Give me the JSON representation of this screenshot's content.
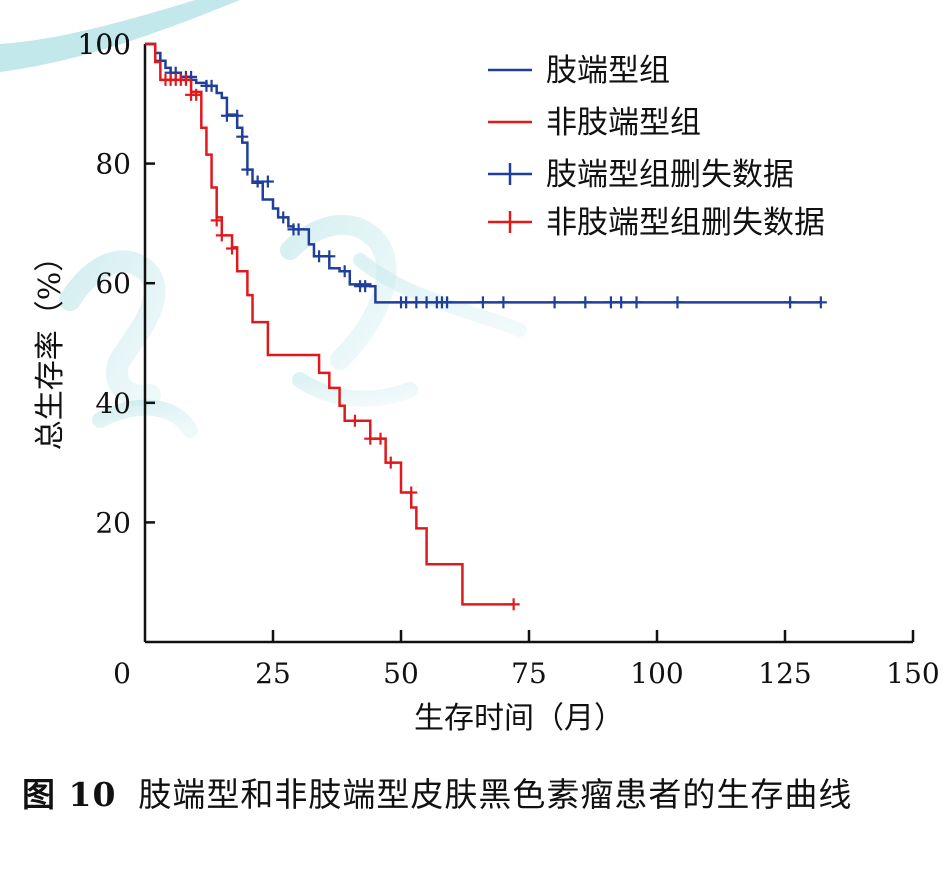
{
  "chart_data": {
    "type": "line",
    "chart_kind": "Kaplan-Meier step survival curve",
    "xlabel": "生存时间（月）",
    "ylabel": "总生存率（%）",
    "xlim": [
      0,
      150
    ],
    "ylim": [
      0,
      100
    ],
    "x_ticks": [
      0,
      25,
      50,
      75,
      100,
      125,
      150
    ],
    "y_ticks": [
      20,
      40,
      60,
      80,
      100
    ],
    "grid": false,
    "legend_position": "top-right",
    "legend": [
      "肢端型组",
      "非肢端型组",
      "肢端型组删失数据",
      "非肢端型组删失数据"
    ],
    "series": [
      {
        "name": "肢端型组",
        "color": "#1f3f9a",
        "steps": [
          [
            0,
            100
          ],
          [
            2,
            98.5
          ],
          [
            3,
            97.2
          ],
          [
            4,
            96
          ],
          [
            5,
            95.2
          ],
          [
            7,
            94.5
          ],
          [
            9,
            94
          ],
          [
            10,
            93.5
          ],
          [
            12,
            93
          ],
          [
            14,
            91.8
          ],
          [
            15,
            91
          ],
          [
            16,
            88.2
          ],
          [
            18,
            86
          ],
          [
            19,
            83.5
          ],
          [
            20,
            79
          ],
          [
            21,
            76.8
          ],
          [
            23,
            74
          ],
          [
            25,
            72.5
          ],
          [
            26,
            71
          ],
          [
            28,
            69.5
          ],
          [
            29,
            69
          ],
          [
            32,
            66.5
          ],
          [
            33,
            64.5
          ],
          [
            36,
            62.5
          ],
          [
            38,
            62
          ],
          [
            40,
            59.8
          ],
          [
            44,
            59.5
          ],
          [
            45,
            56.8
          ],
          [
            132,
            56.8
          ]
        ],
        "censored": [
          [
            3,
            97.2
          ],
          [
            5,
            95.2
          ],
          [
            6,
            95.2
          ],
          [
            8,
            94.5
          ],
          [
            9,
            94.5
          ],
          [
            12,
            93
          ],
          [
            13,
            93
          ],
          [
            16,
            88
          ],
          [
            18,
            88
          ],
          [
            19,
            84.5
          ],
          [
            20,
            79
          ],
          [
            22,
            77
          ],
          [
            24,
            77
          ],
          [
            27,
            71
          ],
          [
            29,
            69
          ],
          [
            30,
            69
          ],
          [
            34,
            64.5
          ],
          [
            36,
            64.5
          ],
          [
            39,
            62
          ],
          [
            42,
            59.5
          ],
          [
            43,
            59.5
          ],
          [
            50,
            56.8
          ],
          [
            51,
            56.8
          ],
          [
            53,
            56.8
          ],
          [
            55,
            56.8
          ],
          [
            57,
            56.8
          ],
          [
            58,
            56.8
          ],
          [
            59,
            56.8
          ],
          [
            66,
            56.8
          ],
          [
            70,
            56.8
          ],
          [
            80,
            56.8
          ],
          [
            86,
            56.8
          ],
          [
            91,
            56.8
          ],
          [
            93,
            56.8
          ],
          [
            96,
            56.8
          ],
          [
            104,
            56.8
          ],
          [
            126,
            56.8
          ],
          [
            132,
            56.8
          ]
        ]
      },
      {
        "name": "非肢端型组",
        "color": "#e0191d",
        "steps": [
          [
            0,
            100
          ],
          [
            2,
            97
          ],
          [
            3,
            94
          ],
          [
            8,
            94
          ],
          [
            9,
            92
          ],
          [
            11,
            86
          ],
          [
            12,
            81.5
          ],
          [
            13,
            76
          ],
          [
            14,
            71
          ],
          [
            15,
            68
          ],
          [
            17,
            66
          ],
          [
            18,
            62
          ],
          [
            20,
            58
          ],
          [
            21,
            53.5
          ],
          [
            24,
            48
          ],
          [
            34,
            45
          ],
          [
            36,
            42.5
          ],
          [
            38,
            39.5
          ],
          [
            39,
            37
          ],
          [
            44,
            34
          ],
          [
            47,
            30
          ],
          [
            50,
            25
          ],
          [
            52,
            22.5
          ],
          [
            53,
            19
          ],
          [
            55,
            13
          ],
          [
            62,
            6.3
          ],
          [
            72,
            6.3
          ]
        ],
        "censored": [
          [
            4,
            94
          ],
          [
            5,
            94
          ],
          [
            6,
            94
          ],
          [
            7,
            94
          ],
          [
            8,
            94
          ],
          [
            9,
            91.5
          ],
          [
            10,
            91.5
          ],
          [
            14,
            70.5
          ],
          [
            15,
            68
          ],
          [
            17,
            65.8
          ],
          [
            41,
            37
          ],
          [
            44,
            34
          ],
          [
            46,
            34
          ],
          [
            48,
            30
          ],
          [
            52,
            25
          ],
          [
            72,
            6.3
          ]
        ]
      }
    ]
  },
  "caption": {
    "figure_number": "图 10",
    "text": "肢端型和非肢端型皮肤黑色素瘤患者的生存曲线"
  }
}
